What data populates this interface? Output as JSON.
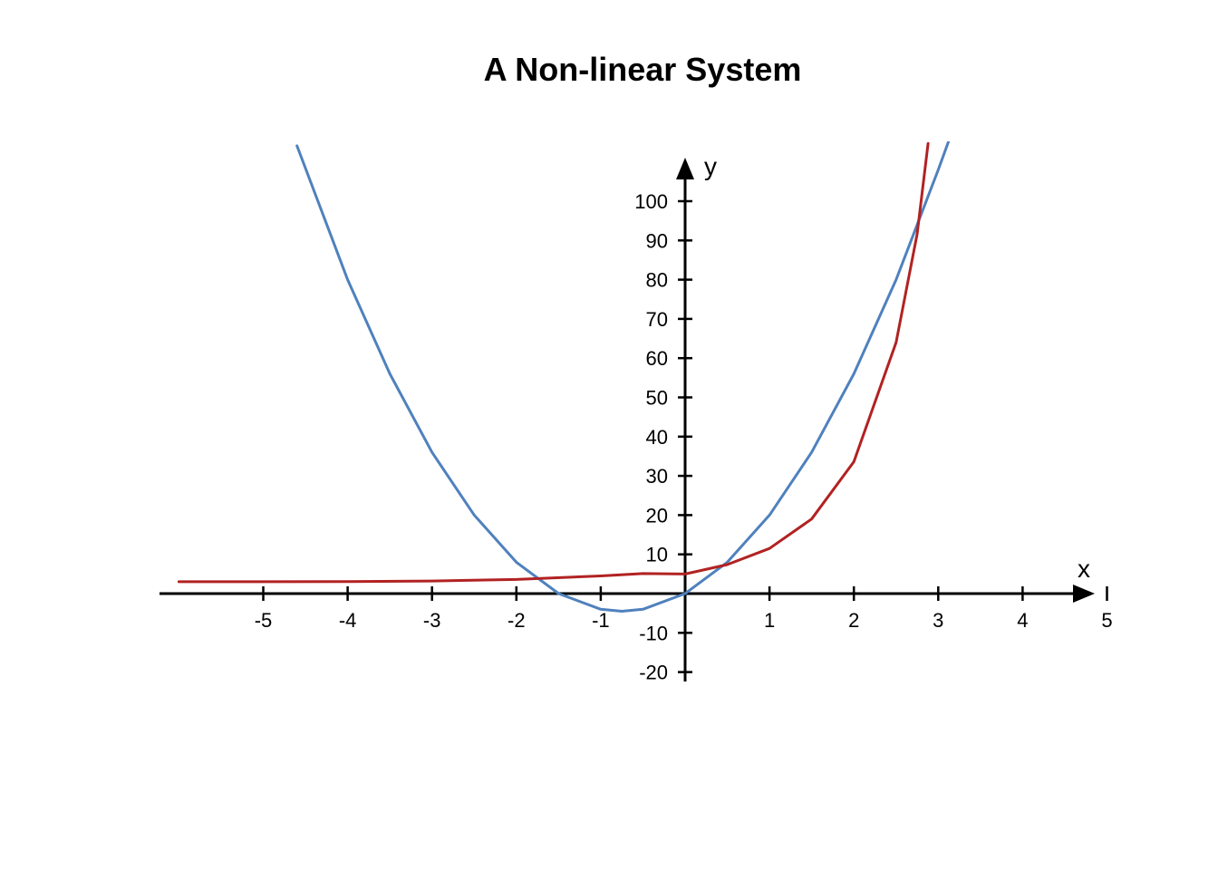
{
  "chart_data": {
    "type": "line",
    "title": "A Non-linear System",
    "xlabel": "x",
    "ylabel": "y",
    "xlim": [
      -6.2,
      5
    ],
    "ylim": [
      -25,
      115
    ],
    "x_ticks": [
      -5,
      -4,
      -3,
      -2,
      -1,
      1,
      2,
      3,
      4,
      5
    ],
    "y_ticks": [
      -20,
      -10,
      10,
      20,
      30,
      40,
      50,
      60,
      70,
      80,
      90,
      100
    ],
    "grid": false,
    "legend": "none",
    "series": [
      {
        "color": "#4f81bd",
        "x": [
          -4.6,
          -4.0,
          -3.5,
          -3.0,
          -2.5,
          -2.0,
          -1.5,
          -1.0,
          -0.75,
          -0.5,
          0.0,
          0.5,
          1.0,
          1.5,
          2.0,
          2.5,
          3.0,
          3.15
        ],
        "y": [
          114.1,
          80.0,
          56.0,
          36.0,
          20.0,
          8.0,
          0.0,
          -4.0,
          -4.5,
          -4.0,
          0.0,
          8.0,
          20.0,
          36.0,
          56.0,
          80.0,
          108.0,
          116.9
        ]
      },
      {
        "color": "#b22222",
        "x": [
          -6.0,
          -5.0,
          -4.0,
          -3.0,
          -2.0,
          -1.0,
          -0.5,
          0.0,
          0.5,
          1.0,
          1.5,
          2.0,
          2.5,
          2.75,
          2.88
        ],
        "y": [
          3.03,
          3.03,
          3.08,
          3.2,
          3.6,
          4.5,
          5.1,
          5.0,
          7.4,
          11.5,
          19.0,
          33.6,
          64.0,
          91.6,
          114.7
        ]
      }
    ]
  }
}
